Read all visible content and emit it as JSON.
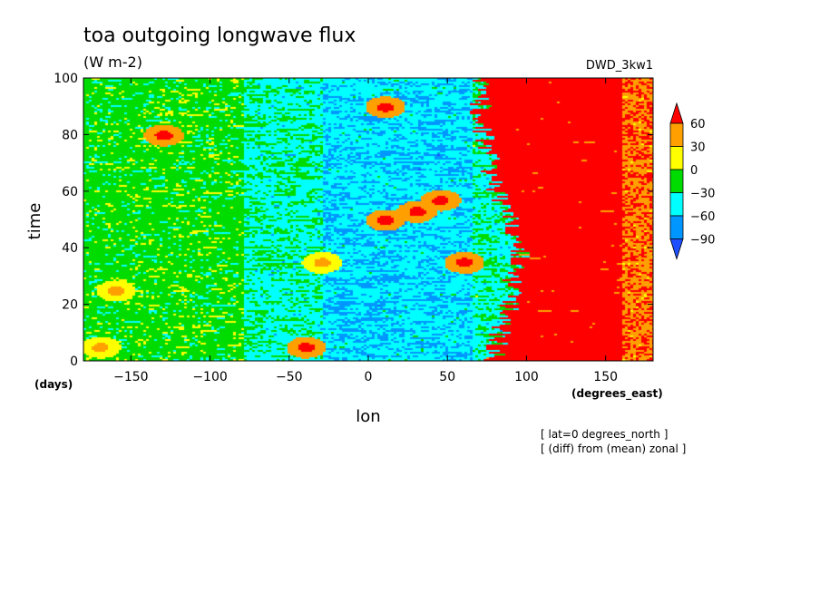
{
  "chart_data": {
    "type": "heatmap",
    "title": "toa outgoing longwave flux",
    "units": "(W m-2)",
    "model": "DWD_3kw1",
    "xlabel": "lon",
    "x_units": "(degrees_east)",
    "ylabel": "time",
    "y_units": "(days)",
    "xlim": [
      -180,
      180
    ],
    "ylim": [
      0,
      100
    ],
    "x_ticks": [
      -150,
      -100,
      -50,
      0,
      50,
      100,
      150
    ],
    "x_tick_labels": [
      "−150",
      "−100",
      "−50",
      "0",
      "50",
      "100",
      "150"
    ],
    "y_ticks": [
      0,
      20,
      40,
      60,
      80,
      100
    ],
    "y_tick_labels": [
      "0",
      "20",
      "40",
      "60",
      "80",
      "100"
    ],
    "annotations": [
      "[ lat=0 degrees_north ]",
      "[ (diff) from (mean) zonal ]"
    ],
    "colorbar": {
      "levels": [
        60,
        30,
        0,
        -30,
        -60,
        -90
      ],
      "level_labels": [
        "60",
        "30",
        "0",
        "−30",
        "−60",
        "−90"
      ],
      "colors": [
        "#ff0000",
        "#ff9f00",
        "#ffff00",
        "#00dc00",
        "#00ffff",
        "#0096ff",
        "#1e50ff"
      ],
      "extend": "both"
    },
    "pattern": {
      "description_of_field": "zonal anomaly; warm (red) band over Indian/West Pacific longitudes, cold (blue) over Pacific",
      "red_region_west_edge_lon_by_time": [
        [
          0,
          78
        ],
        [
          20,
          88
        ],
        [
          40,
          95
        ],
        [
          60,
          80
        ],
        [
          80,
          72
        ],
        [
          100,
          68
        ]
      ],
      "blue_core_lon_range": [
        -20,
        60
      ],
      "warm_patches": [
        {
          "lon": -160,
          "time": 25,
          "level": 30
        },
        {
          "lon": -130,
          "time": 80,
          "level": 60
        },
        {
          "lon": -170,
          "time": 5,
          "level": 30
        },
        {
          "lon": -40,
          "time": 5,
          "level": 60
        },
        {
          "lon": 10,
          "time": 90,
          "level": 60
        },
        {
          "lon": 45,
          "time": 57,
          "level": 60
        },
        {
          "lon": 30,
          "time": 53,
          "level": 60
        },
        {
          "lon": 10,
          "time": 50,
          "level": 60
        },
        {
          "lon": -30,
          "time": 35,
          "level": 30
        },
        {
          "lon": 60,
          "time": 35,
          "level": 60
        }
      ]
    }
  }
}
